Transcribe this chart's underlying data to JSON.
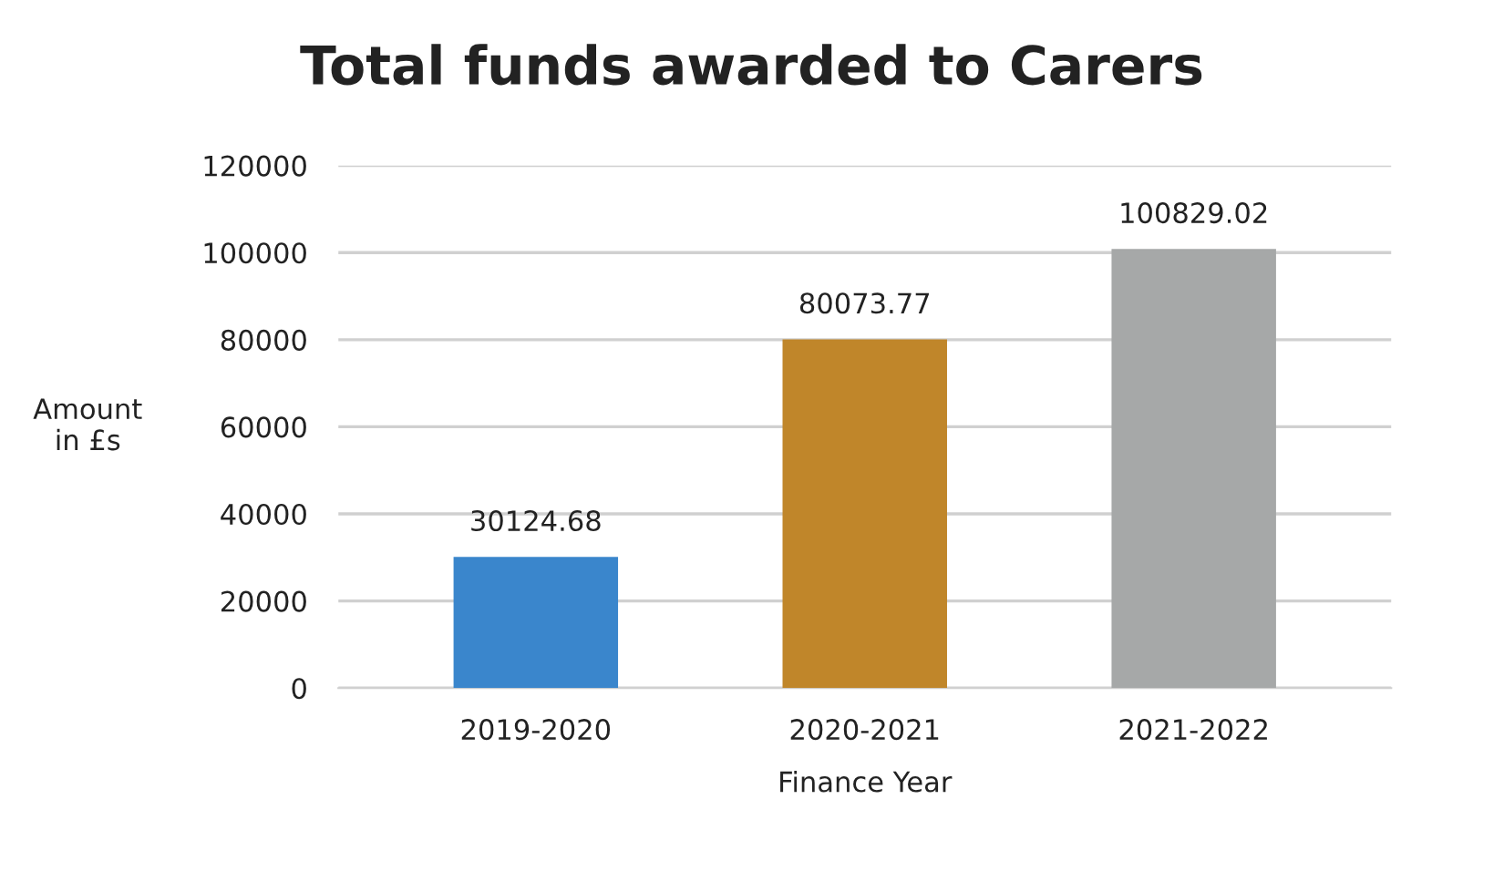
{
  "chart_data": {
    "type": "bar",
    "title": "Total funds awarded to Carers",
    "xlabel": "Finance Year",
    "ylabel": "Amount\nin £s",
    "categories": [
      "2019-2020",
      "2020-2021",
      "2021-2022"
    ],
    "values": [
      30124.68,
      80073.77,
      100829.02
    ],
    "colors": [
      "#3a86cc",
      "#c0862a",
      "#a6a8a8"
    ],
    "ylim": [
      0,
      120000
    ],
    "yticks": [
      0,
      20000,
      40000,
      60000,
      80000,
      100000,
      120000
    ],
    "grid": "y",
    "data_labels": true,
    "legend": false
  }
}
